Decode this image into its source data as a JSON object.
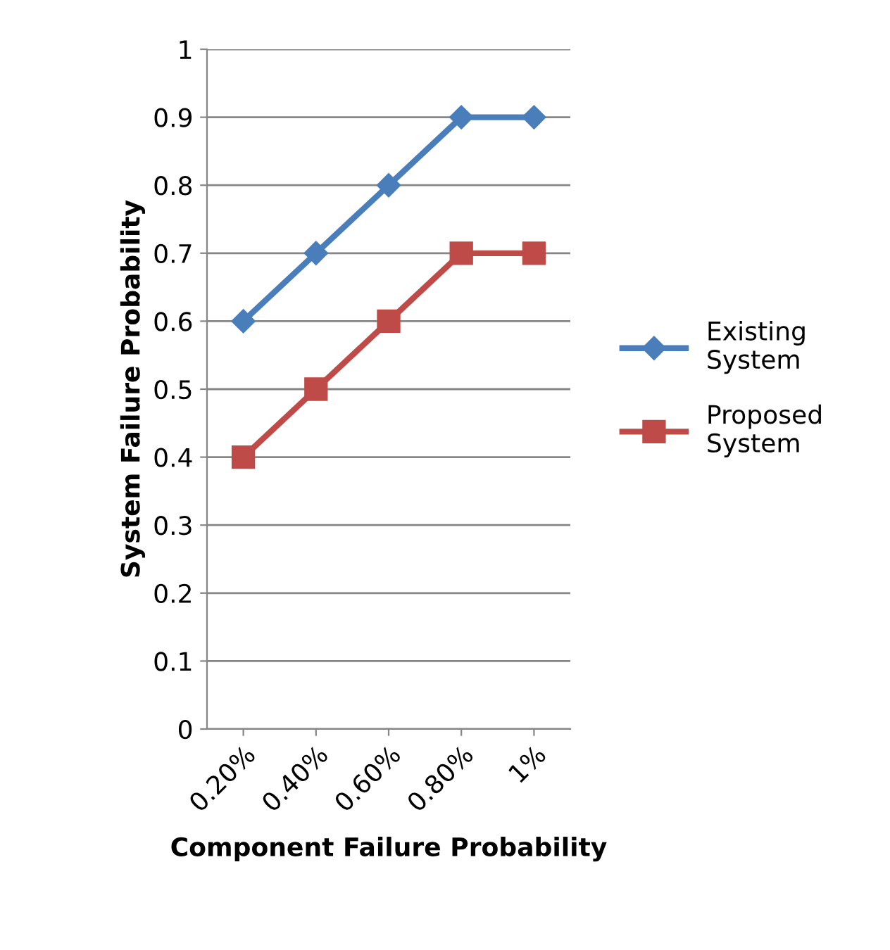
{
  "chart_data": {
    "type": "line",
    "xlabel": "Component Failure Probability",
    "ylabel": "System Failure Probability",
    "categories": [
      "0.20%",
      "0.40%",
      "0.60%",
      "0.80%",
      "1%"
    ],
    "series": [
      {
        "name": "Existing System",
        "color": "#4a7ebb",
        "marker": "diamond",
        "values": [
          0.6,
          0.7,
          0.8,
          0.9,
          0.9
        ]
      },
      {
        "name": "Proposed System",
        "color": "#be4b48",
        "marker": "square",
        "values": [
          0.4,
          0.5,
          0.6,
          0.7,
          0.7
        ]
      }
    ],
    "ylim": [
      0,
      1
    ],
    "yticks": [
      0,
      0.1,
      0.2,
      0.3,
      0.4,
      0.5,
      0.6,
      0.7,
      0.8,
      0.9,
      1
    ],
    "grid": "y",
    "legend": "right",
    "line_style": "solid"
  }
}
